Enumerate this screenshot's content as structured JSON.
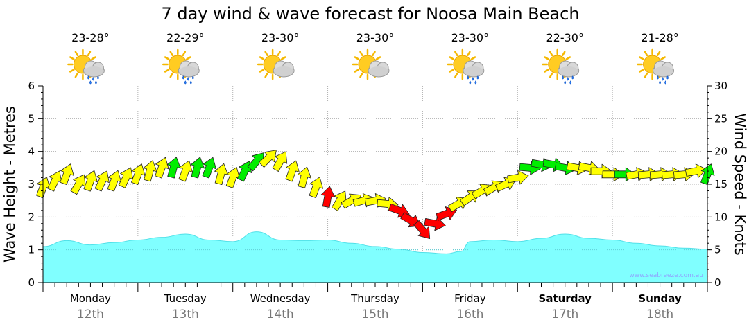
{
  "chart_data": {
    "type": "line",
    "title": "7 day wind & wave forecast for Noosa Main Beach",
    "ylabel_left": "Wave Height - Metres",
    "ylabel_right": "Wind Speed - Knots",
    "ylim_left": [
      0,
      6
    ],
    "ylim_right": [
      0,
      30
    ],
    "left_ticks": [
      "0",
      "1",
      "2",
      "3",
      "4",
      "5",
      "6"
    ],
    "right_ticks": [
      "0",
      "5",
      "10",
      "15",
      "20",
      "25",
      "30"
    ],
    "grid": true,
    "days": [
      {
        "name": "Monday",
        "date": "12th",
        "temp": "23-28°",
        "weather": "showers",
        "bold": false
      },
      {
        "name": "Tuesday",
        "date": "13th",
        "temp": "22-29°",
        "weather": "showers",
        "bold": false
      },
      {
        "name": "Wednesday",
        "date": "14th",
        "temp": "23-30°",
        "weather": "partly-cloudy",
        "bold": false
      },
      {
        "name": "Thursday",
        "date": "15th",
        "temp": "23-30°",
        "weather": "partly-cloudy",
        "bold": false
      },
      {
        "name": "Friday",
        "date": "16th",
        "temp": "23-30°",
        "weather": "showers",
        "bold": false
      },
      {
        "name": "Saturday",
        "date": "17th",
        "temp": "22-30°",
        "weather": "showers",
        "bold": true
      },
      {
        "name": "Sunday",
        "date": "18th",
        "temp": "21-28°",
        "weather": "showers",
        "bold": true
      }
    ],
    "series": [
      {
        "name": "Wave Height",
        "unit": "m",
        "x_day": [
          0,
          0.25,
          0.5,
          0.75,
          1.0,
          1.25,
          1.5,
          1.75,
          2.0,
          2.25,
          2.5,
          2.75,
          3.0,
          3.25,
          3.5,
          3.75,
          4.0,
          4.25,
          4.4,
          4.5,
          4.75,
          5.0,
          5.25,
          5.5,
          5.75,
          6.0,
          6.25,
          6.5,
          6.75,
          7.0
        ],
        "values": [
          1.1,
          1.28,
          1.15,
          1.22,
          1.3,
          1.38,
          1.48,
          1.3,
          1.25,
          1.55,
          1.3,
          1.28,
          1.3,
          1.2,
          1.1,
          1.02,
          0.92,
          0.88,
          0.95,
          1.25,
          1.3,
          1.25,
          1.35,
          1.48,
          1.35,
          1.3,
          1.2,
          1.12,
          1.05,
          1.02
        ]
      },
      {
        "name": "Wind Speed",
        "unit": "knots",
        "x_day": [
          0,
          0.125,
          0.25,
          0.375,
          0.5,
          0.625,
          0.75,
          0.875,
          1.0,
          1.125,
          1.25,
          1.375,
          1.5,
          1.625,
          1.75,
          1.875,
          2.0,
          2.125,
          2.25,
          2.375,
          2.5,
          2.625,
          2.75,
          2.875,
          3.0,
          3.125,
          3.25,
          3.375,
          3.5,
          3.625,
          3.75,
          3.875,
          4.0,
          4.125,
          4.25,
          4.375,
          4.5,
          4.625,
          4.75,
          4.875,
          5.0,
          5.125,
          5.25,
          5.375,
          5.5,
          5.625,
          5.75,
          5.875,
          6.0,
          6.125,
          6.25,
          6.375,
          6.5,
          6.625,
          6.75,
          6.875,
          7.0
        ],
        "values": [
          14.5,
          15.5,
          16.5,
          15,
          15.5,
          15.5,
          15.5,
          16,
          16.5,
          17,
          17.5,
          17.5,
          17,
          17.5,
          17.5,
          16.5,
          16,
          17,
          18.5,
          19,
          18.5,
          17,
          16,
          14.5,
          13,
          12.5,
          12.5,
          12.5,
          12.5,
          12,
          11,
          9.5,
          8,
          9,
          10.5,
          12,
          13,
          14,
          14.5,
          15,
          16,
          17.5,
          18,
          18,
          17.5,
          17.5,
          17.5,
          17,
          16.5,
          16.5,
          16.5,
          16.5,
          16.5,
          16.5,
          16.5,
          17,
          16.5
        ],
        "dir_deg": [
          20,
          25,
          20,
          30,
          20,
          25,
          20,
          25,
          20,
          15,
          20,
          15,
          20,
          15,
          20,
          15,
          20,
          25,
          40,
          45,
          30,
          20,
          15,
          20,
          10,
          30,
          60,
          75,
          80,
          95,
          110,
          120,
          140,
          100,
          70,
          60,
          55,
          60,
          60,
          65,
          80,
          95,
          100,
          100,
          100,
          100,
          100,
          90,
          90,
          90,
          80,
          85,
          85,
          85,
          85,
          80,
          20
        ],
        "strength": [
          "yellow",
          "yellow",
          "yellow",
          "yellow",
          "yellow",
          "yellow",
          "yellow",
          "yellow",
          "yellow",
          "yellow",
          "yellow",
          "green",
          "yellow",
          "green",
          "green",
          "yellow",
          "yellow",
          "green",
          "green",
          "yellow",
          "yellow",
          "yellow",
          "yellow",
          "yellow",
          "red",
          "yellow",
          "yellow",
          "yellow",
          "yellow",
          "yellow",
          "red",
          "red",
          "red",
          "red",
          "red",
          "yellow",
          "yellow",
          "yellow",
          "yellow",
          "yellow",
          "yellow",
          "green",
          "green",
          "green",
          "green",
          "yellow",
          "yellow",
          "yellow",
          "yellow",
          "green",
          "yellow",
          "yellow",
          "yellow",
          "yellow",
          "yellow",
          "yellow",
          "green"
        ]
      }
    ],
    "watermark": "www.seabreeze.com.au",
    "colors": {
      "wave_fill": "#80ffff",
      "wave_line": "#50e0e8",
      "wind_light": "#ffff00",
      "wind_moderate": "#00ee00",
      "wind_strong": "#ff0000",
      "grid": "#b0b0b0"
    }
  }
}
